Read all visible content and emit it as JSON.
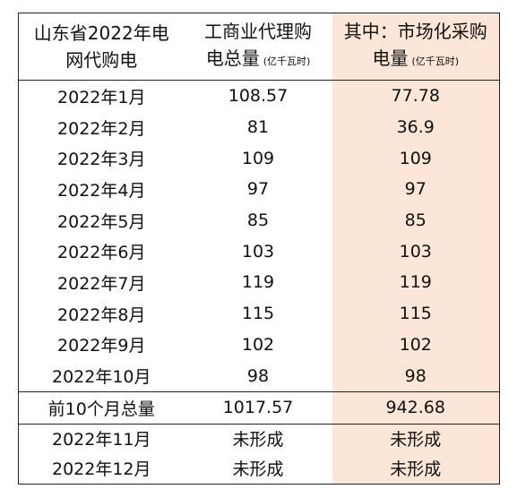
{
  "header": [
    {
      "main": "山东省2022年电网代购电"
    },
    {
      "main": "工商业代理购电总量",
      "unit": "(亿千瓦时)"
    },
    {
      "main": "其中：市场化采购电量",
      "unit": "(亿千瓦时)"
    }
  ],
  "rows": [
    [
      "2022年1月",
      108.57,
      77.78
    ],
    [
      "2022年2月",
      81,
      36.9
    ],
    [
      "2022年3月",
      109,
      109
    ],
    [
      "2022年4月",
      97,
      97
    ],
    [
      "2022年5月",
      85,
      85
    ],
    [
      "2022年6月",
      103,
      103
    ],
    [
      "2022年7月",
      119,
      119
    ],
    [
      "2022年8月",
      115,
      115
    ],
    [
      "2022年9月",
      102,
      102
    ],
    [
      "2022年10月",
      98,
      98
    ]
  ],
  "total": [
    "前10个月总量",
    1017.57,
    942.68
  ],
  "pending": [
    [
      "2022年11月",
      "未形成",
      "未形成"
    ],
    [
      "2022年12月",
      "未形成",
      "未形成"
    ]
  ]
}
